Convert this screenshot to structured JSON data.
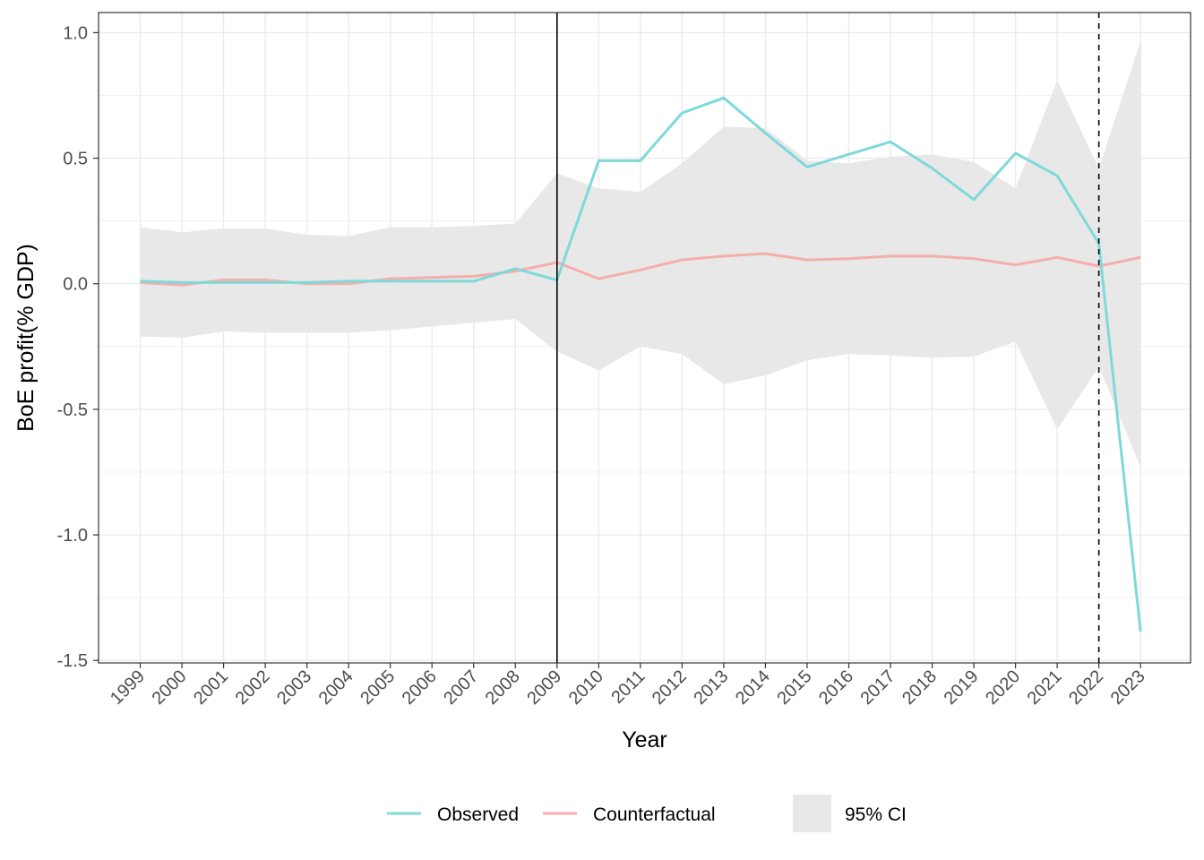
{
  "chart_data": {
    "type": "line",
    "title": "",
    "xlabel": "Year",
    "ylabel": "BoE profit(% GDP)",
    "x": [
      1999,
      2000,
      2001,
      2002,
      2003,
      2004,
      2005,
      2006,
      2007,
      2008,
      2009,
      2010,
      2011,
      2012,
      2013,
      2014,
      2015,
      2016,
      2017,
      2018,
      2019,
      2020,
      2021,
      2022,
      2023
    ],
    "x_tick_labels": [
      "1999",
      "2000",
      "2001",
      "2002",
      "2003",
      "2004",
      "2005",
      "2006",
      "2007",
      "2008",
      "2009",
      "2010",
      "2011",
      "2012",
      "2013",
      "2014",
      "2015",
      "2016",
      "2017",
      "2018",
      "2019",
      "2020",
      "2021",
      "2022",
      "2023"
    ],
    "y_ticks": [
      1.0,
      0.5,
      0.0,
      -0.5,
      -1.0,
      -1.5
    ],
    "y_tick_labels": [
      "1.0",
      "0.5",
      "0.0",
      "-0.5",
      "-1.0",
      "-1.5"
    ],
    "xlim": [
      1998.0,
      2024.2
    ],
    "ylim": [
      -1.51,
      1.08
    ],
    "grid": true,
    "series": [
      {
        "name": "Observed",
        "color": "#7fd9d9",
        "values": [
          0.01,
          0.005,
          0.005,
          0.005,
          0.005,
          0.01,
          0.01,
          0.01,
          0.01,
          0.06,
          0.015,
          0.49,
          0.49,
          0.68,
          0.74,
          0.6,
          0.465,
          0.515,
          0.565,
          0.46,
          0.335,
          0.52,
          0.43,
          0.16,
          -1.385
        ]
      },
      {
        "name": "Counterfactual",
        "color": "#f4aeab",
        "values": [
          0.005,
          -0.005,
          0.015,
          0.015,
          0.0,
          0.0,
          0.02,
          0.025,
          0.03,
          0.05,
          0.085,
          0.02,
          0.055,
          0.095,
          0.11,
          0.12,
          0.095,
          0.1,
          0.11,
          0.11,
          0.1,
          0.075,
          0.105,
          0.07,
          0.105
        ]
      }
    ],
    "ci_band": {
      "name": "95% CI",
      "color": "#e8e8e8",
      "lower": [
        -0.21,
        -0.215,
        -0.19,
        -0.195,
        -0.195,
        -0.195,
        -0.185,
        -0.17,
        -0.155,
        -0.14,
        -0.27,
        -0.345,
        -0.25,
        -0.28,
        -0.4,
        -0.365,
        -0.305,
        -0.28,
        -0.285,
        -0.295,
        -0.29,
        -0.23,
        -0.58,
        -0.33,
        -0.73
      ],
      "upper": [
        0.225,
        0.205,
        0.22,
        0.22,
        0.195,
        0.19,
        0.225,
        0.225,
        0.23,
        0.24,
        0.44,
        0.38,
        0.365,
        0.48,
        0.625,
        0.62,
        0.49,
        0.48,
        0.505,
        0.515,
        0.485,
        0.38,
        0.81,
        0.46,
        0.965
      ]
    },
    "vertical_lines": [
      {
        "x": 2009,
        "style": "solid"
      },
      {
        "x": 2022,
        "style": "dashed"
      }
    ],
    "legend": {
      "position": "bottom",
      "items": [
        {
          "label": "Observed",
          "kind": "line",
          "color": "#7fd9d9"
        },
        {
          "label": "Counterfactual",
          "kind": "line",
          "color": "#f4aeab"
        },
        {
          "label": "95% CI",
          "kind": "fill",
          "color": "#e8e8e8"
        }
      ]
    }
  }
}
